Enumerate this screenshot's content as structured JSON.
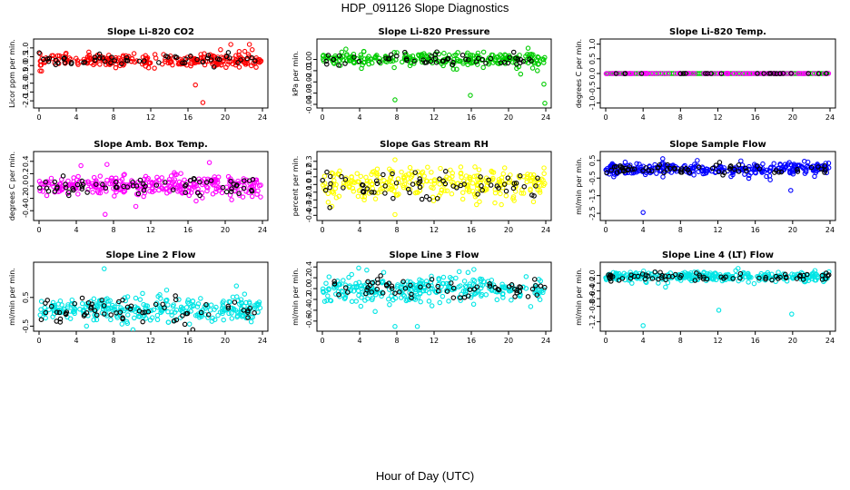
{
  "figure": {
    "title": "HDP_091126  Slope Diagnostics",
    "xlabel": "Hour of Day (UTC)"
  },
  "chart_data": [
    {
      "type": "scatter",
      "title": "Slope Li-820 CO2",
      "ylabel": "Licor ppm per min.",
      "xlim": [
        0,
        24
      ],
      "ylim": [
        -2.2,
        1.3
      ],
      "xticks": [
        0,
        4,
        8,
        12,
        16,
        20,
        24
      ],
      "yticks": [
        -2,
        -1.5,
        -1,
        -0.5,
        0,
        0.5,
        1
      ],
      "ytick_labels": [
        "-2.0",
        "-1.5",
        "-1.0",
        "-0.5",
        "0.0",
        "0.5",
        "1.0"
      ],
      "band_center": 0.3,
      "band_spread": 0.35,
      "points_n": 260,
      "outliers": [
        [
          0.1,
          -0.3
        ],
        [
          16.8,
          -1.1
        ],
        [
          17.6,
          -2.1
        ],
        [
          19.5,
          0.9
        ],
        [
          20.6,
          1.2
        ],
        [
          21.5,
          0.8
        ],
        [
          22.6,
          1.2
        ],
        [
          22.9,
          0.9
        ]
      ],
      "series": [
        {
          "color": "#ff0000"
        },
        {
          "color": "#000000"
        }
      ]
    },
    {
      "type": "scatter",
      "title": "Slope Li-820 Pressure",
      "ylabel": "kPa per min.",
      "xlim": [
        0,
        24
      ],
      "ylim": [
        -0.04,
        0.015
      ],
      "xticks": [
        0,
        4,
        8,
        12,
        16,
        20,
        24
      ],
      "yticks": [
        -0.04,
        -0.03,
        -0.02,
        -0.01,
        0
      ],
      "ytick_labels": [
        "-0.04",
        "-0.03",
        "-0.02",
        "-0.01",
        "0.00"
      ],
      "band_center": 0.0,
      "band_spread": 0.006,
      "points_n": 260,
      "outliers": [
        [
          4.2,
          -0.008
        ],
        [
          7.8,
          -0.036
        ],
        [
          15.9,
          -0.032
        ],
        [
          22.1,
          0.01
        ],
        [
          23.1,
          -0.01
        ],
        [
          23.8,
          -0.022
        ],
        [
          23.9,
          -0.039
        ],
        [
          21.3,
          -0.013
        ]
      ],
      "series": [
        {
          "color": "#00cc00"
        },
        {
          "color": "#000000"
        }
      ]
    },
    {
      "type": "scatter",
      "title": "Slope Li-820 Temp.",
      "ylabel": "degrees C per min.",
      "xlim": [
        0,
        24
      ],
      "ylim": [
        -1.05,
        1.05
      ],
      "xticks": [
        0,
        4,
        8,
        12,
        16,
        20,
        24
      ],
      "yticks": [
        -1,
        -0.5,
        0,
        0.5,
        1
      ],
      "ytick_labels": [
        "-1.0",
        "-0.5",
        "0.0",
        "0.5",
        "1.0"
      ],
      "band_center": 0.0,
      "band_spread": 0.005,
      "points_n": 110,
      "outliers": [],
      "series": [
        {
          "color": "#ff00ff"
        },
        {
          "color": "#000000"
        }
      ],
      "flat_line_color": "#00cc00"
    },
    {
      "type": "scatter",
      "title": "Slope Amb. Box Temp.",
      "ylabel": "degrees C per min.",
      "xlim": [
        0,
        24
      ],
      "ylim": [
        -0.5,
        0.5
      ],
      "xticks": [
        0,
        4,
        8,
        12,
        16,
        20,
        24
      ],
      "yticks": [
        -0.4,
        -0.2,
        0,
        0.2,
        0.4
      ],
      "ytick_labels": [
        "-0.4",
        "-0.2",
        "0.0",
        "0.2",
        "0.4"
      ],
      "band_center": 0.0,
      "band_spread": 0.17,
      "points_n": 300,
      "outliers": [
        [
          7.1,
          -0.46
        ],
        [
          7.3,
          0.35
        ],
        [
          10.4,
          -0.33
        ],
        [
          4.5,
          0.33
        ],
        [
          18.3,
          0.38
        ]
      ],
      "series": [
        {
          "color": "#ff00ff"
        },
        {
          "color": "#000000"
        }
      ]
    },
    {
      "type": "scatter",
      "title": "Slope Gas Stream RH",
      "ylabel": "percent per min.",
      "xlim": [
        0,
        24
      ],
      "ylim": [
        -0.42,
        0.38
      ],
      "xticks": [
        0,
        4,
        8,
        12,
        16,
        20,
        24
      ],
      "yticks": [
        -0.4,
        -0.3,
        -0.2,
        -0.1,
        0,
        0.1,
        0.2,
        0.3
      ],
      "ytick_labels": [
        "-0.4",
        "-0.3",
        "-0.2",
        "-0.1",
        "0.0",
        "0.1",
        "0.2",
        "0.3"
      ],
      "band_center": 0.0,
      "band_spread": 0.2,
      "points_n": 300,
      "outliers": [
        [
          7.8,
          0.32
        ],
        [
          7.8,
          -0.39
        ],
        [
          7.2,
          0.2
        ]
      ],
      "series": [
        {
          "color": "#ffff00"
        },
        {
          "color": "#000000"
        }
      ]
    },
    {
      "type": "scatter",
      "title": "Slope Sample Flow",
      "ylabel": "ml/min per min.",
      "xlim": [
        0,
        24
      ],
      "ylim": [
        -2.7,
        0.8
      ],
      "xticks": [
        0,
        4,
        8,
        12,
        16,
        20,
        24
      ],
      "yticks": [
        -2.5,
        -1.5,
        -0.5,
        0.5
      ],
      "ytick_labels": [
        "-2.5",
        "-1.5",
        "-0.5",
        "0.5"
      ],
      "band_center": 0.0,
      "band_spread": 0.35,
      "points_n": 300,
      "outliers": [
        [
          4,
          -2.45
        ],
        [
          19.8,
          -1.2
        ],
        [
          6.1,
          0.6
        ],
        [
          9.8,
          0.5
        ],
        [
          17.6,
          -0.6
        ]
      ],
      "series": [
        {
          "color": "#0000ff"
        },
        {
          "color": "#000000"
        }
      ]
    },
    {
      "type": "scatter",
      "title": "Slope Line 2 Flow",
      "ylabel": "ml/min per min.",
      "xlim": [
        0,
        24
      ],
      "ylim": [
        -0.55,
        1.6
      ],
      "xticks": [
        0,
        4,
        8,
        12,
        16,
        20,
        24
      ],
      "yticks": [
        -0.5,
        0.5
      ],
      "ytick_labels": [
        "-0.5",
        "0.5"
      ],
      "band_center": 0.05,
      "band_spread": 0.45,
      "points_n": 300,
      "outliers": [
        [
          7,
          1.5
        ],
        [
          5.1,
          -0.5
        ],
        [
          21.2,
          0.9
        ]
      ],
      "series": [
        {
          "color": "#00e5e5"
        },
        {
          "color": "#000000"
        }
      ]
    },
    {
      "type": "scatter",
      "title": "Slope Line 3 Flow",
      "ylabel": "ml/min per min.",
      "xlim": [
        0,
        24
      ],
      "ylim": [
        -0.72,
        0.42
      ],
      "xticks": [
        0,
        4,
        8,
        12,
        16,
        20,
        24
      ],
      "yticks": [
        -0.6,
        -0.4,
        -0.2,
        0,
        0.2,
        0.4
      ],
      "ytick_labels": [
        "-0.6",
        "-0.4",
        "-0.2",
        "0.0",
        "0.2",
        "0.4"
      ],
      "band_center": 0.0,
      "band_spread": 0.25,
      "points_n": 300,
      "outliers": [
        [
          7.8,
          -0.7
        ],
        [
          10.2,
          -0.7
        ],
        [
          3.9,
          0.38
        ]
      ],
      "series": [
        {
          "color": "#00e5e5"
        },
        {
          "color": "#000000"
        }
      ]
    },
    {
      "type": "scatter",
      "title": "Slope Line 4 (LT) Flow",
      "ylabel": "ml/min per min.",
      "xlim": [
        0,
        24
      ],
      "ylim": [
        -1.35,
        0.25
      ],
      "xticks": [
        0,
        4,
        8,
        12,
        16,
        20,
        24
      ],
      "yticks": [
        -1.2,
        -0.8,
        -0.6,
        -0.4,
        -0.2,
        0
      ],
      "ytick_labels": [
        "-1.2",
        "-0.8",
        "-0.6",
        "-0.4",
        "-0.2",
        "0.0"
      ],
      "band_center": -0.03,
      "band_spread": 0.12,
      "points_n": 300,
      "outliers": [
        [
          4,
          -1.3
        ],
        [
          12.1,
          -0.9
        ],
        [
          19.9,
          -1.0
        ],
        [
          6.4,
          -0.3
        ],
        [
          2.8,
          -0.2
        ]
      ],
      "series": [
        {
          "color": "#00e5e5"
        },
        {
          "color": "#000000"
        }
      ]
    }
  ]
}
